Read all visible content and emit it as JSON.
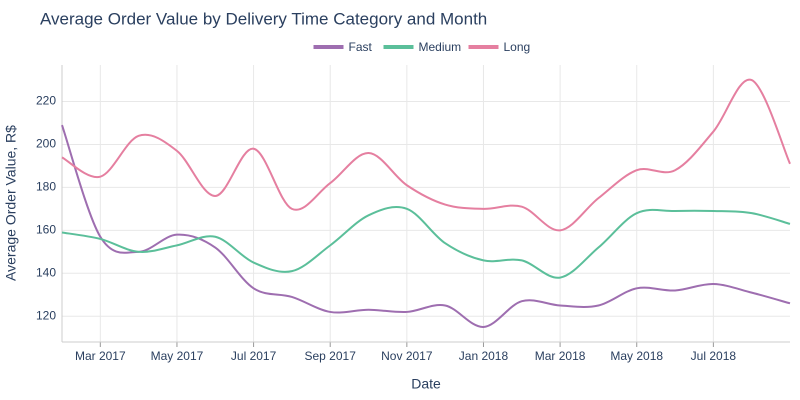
{
  "chart_data": {
    "type": "line",
    "title": "Average Order Value by Delivery Time Category and Month",
    "xlabel": "Date",
    "ylabel": "Average Order Value, R$",
    "x": [
      "2017-02",
      "2017-03",
      "2017-04",
      "2017-05",
      "2017-06",
      "2017-07",
      "2017-08",
      "2017-09",
      "2017-10",
      "2017-11",
      "2017-12",
      "2018-01",
      "2018-02",
      "2018-03",
      "2018-04",
      "2018-05",
      "2018-06",
      "2018-07",
      "2018-08",
      "2018-09"
    ],
    "series": [
      {
        "name": "Fast",
        "color": "#9e6eb0",
        "values": [
          209,
          157,
          150,
          158,
          152,
          133,
          129,
          122,
          123,
          122,
          125,
          115,
          127,
          125,
          125,
          133,
          132,
          135,
          131,
          126
        ]
      },
      {
        "name": "Medium",
        "color": "#5bbf9a",
        "values": [
          159,
          156,
          150,
          153,
          157,
          145,
          141,
          153,
          167,
          170,
          154,
          146,
          146,
          138,
          152,
          168,
          169,
          169,
          168,
          163
        ]
      },
      {
        "name": "Long",
        "color": "#e57fa0",
        "values": [
          194,
          185,
          204,
          197,
          176,
          198,
          170,
          182,
          196,
          181,
          172,
          170,
          171,
          160,
          175,
          188,
          188,
          206,
          230,
          191
        ]
      }
    ],
    "xlim": [
      "2017-02",
      "2018-09"
    ],
    "xticks": [
      {
        "value": "2017-03",
        "label": "Mar 2017"
      },
      {
        "value": "2017-05",
        "label": "May 2017"
      },
      {
        "value": "2017-07",
        "label": "Jul 2017"
      },
      {
        "value": "2017-09",
        "label": "Sep 2017"
      },
      {
        "value": "2017-11",
        "label": "Nov 2017"
      },
      {
        "value": "2018-01",
        "label": "Jan 2018"
      },
      {
        "value": "2018-03",
        "label": "Mar 2018"
      },
      {
        "value": "2018-05",
        "label": "May 2018"
      },
      {
        "value": "2018-07",
        "label": "Jul 2018"
      }
    ],
    "ylim": [
      108,
      237
    ],
    "yticks": [
      120,
      140,
      160,
      180,
      200,
      220
    ],
    "grid": true,
    "legend": "top"
  }
}
